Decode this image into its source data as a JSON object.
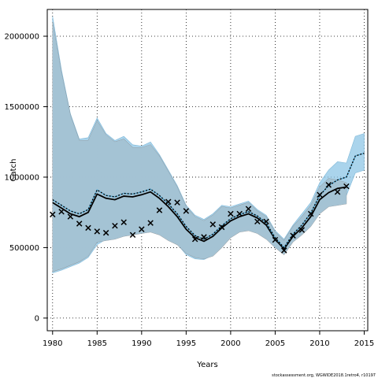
{
  "chart_data": {
    "type": "line",
    "title": "",
    "xlabel": "Years",
    "ylabel": "Catch",
    "xlim": [
      1979.4,
      2015.4
    ],
    "ylim": [
      -90000,
      2190000
    ],
    "xticks": [
      1980,
      1985,
      1990,
      1995,
      2000,
      2005,
      2010,
      2015
    ],
    "yticks": [
      0,
      500000,
      1000000,
      1500000,
      2000000
    ],
    "grid": true,
    "footer": "stockassessment.org, WGWIDE2018.1retro4, r10197",
    "colors": {
      "outer_band": "#8ec6e6",
      "gray_band": "#a3a3a3",
      "inner_band": "#a4c4d6",
      "estimate_line": "#000000",
      "retro_line": "#5ab0dc",
      "observed_marker": "#000000"
    },
    "series": [
      {
        "role": "upper-band-light",
        "x": [
          1980,
          1981,
          1982,
          1983,
          1984,
          1985,
          1986,
          1987,
          1988,
          1989,
          1990,
          1991,
          1992,
          1993,
          1994,
          1995,
          1996,
          1997,
          1998,
          1999,
          2000,
          2001,
          2002,
          2003,
          2004,
          2005,
          2006,
          2007,
          2008,
          2009,
          2010,
          2011,
          2012,
          2013,
          2014,
          2015
        ],
        "lower": [
          320000,
          340000,
          365000,
          390000,
          430000,
          520000,
          560000,
          580000,
          590000,
          600000,
          615000,
          620000,
          600000,
          560000,
          525000,
          450000,
          420000,
          415000,
          445000,
          520000,
          600000,
          640000,
          660000,
          640000,
          600000,
          500000,
          460000,
          560000,
          610000,
          700000,
          790000,
          835000,
          850000,
          870000,
          1030000,
          1050000
        ],
        "upper": [
          2140000,
          1760000,
          1450000,
          1270000,
          1280000,
          1420000,
          1310000,
          1260000,
          1290000,
          1230000,
          1220000,
          1250000,
          1160000,
          1050000,
          940000,
          800000,
          730000,
          700000,
          740000,
          800000,
          790000,
          810000,
          830000,
          770000,
          730000,
          620000,
          560000,
          660000,
          740000,
          820000,
          960000,
          1050000,
          1110000,
          1100000,
          1290000,
          1310000
        ]
      },
      {
        "role": "gray-band-final-run",
        "x": [
          1980,
          1981,
          1982,
          1983,
          1984,
          1985,
          1986,
          1987,
          1988,
          1989,
          1990,
          1991,
          1992,
          1993,
          1994,
          1995,
          1996,
          1997,
          1998,
          1999,
          2000,
          2001,
          2002,
          2003,
          2004,
          2005,
          2006,
          2007,
          2008,
          2009,
          2010,
          2011,
          2012,
          2013
        ],
        "lower": [
          330000,
          350000,
          375000,
          400000,
          440000,
          540000,
          550000,
          560000,
          580000,
          590000,
          600000,
          610000,
          590000,
          550000,
          520000,
          460000,
          430000,
          420000,
          440000,
          500000,
          570000,
          610000,
          620000,
          600000,
          560000,
          500000,
          450000,
          540000,
          590000,
          650000,
          740000,
          790000,
          800000,
          810000
        ],
        "upper": [
          2100000,
          1740000,
          1440000,
          1260000,
          1260000,
          1400000,
          1300000,
          1250000,
          1270000,
          1210000,
          1210000,
          1230000,
          1150000,
          1040000,
          930000,
          790000,
          720000,
          690000,
          730000,
          790000,
          780000,
          800000,
          820000,
          760000,
          720000,
          610000,
          550000,
          650000,
          720000,
          800000,
          930000,
          990000,
          980000,
          960000
        ]
      },
      {
        "role": "estimate-final-run",
        "x": [
          1980,
          1981,
          1982,
          1983,
          1984,
          1985,
          1986,
          1987,
          1988,
          1989,
          1990,
          1991,
          1992,
          1993,
          1994,
          1995,
          1996,
          1997,
          1998,
          1999,
          2000,
          2001,
          2002,
          2003,
          2004,
          2005,
          2006,
          2007,
          2008,
          2009,
          2010,
          2011,
          2012,
          2013
        ],
        "values": [
          820000,
          780000,
          740000,
          720000,
          750000,
          880000,
          850000,
          840000,
          865000,
          860000,
          875000,
          895000,
          850000,
          790000,
          720000,
          630000,
          570000,
          545000,
          580000,
          640000,
          690000,
          720000,
          740000,
          710000,
          660000,
          560000,
          490000,
          580000,
          640000,
          720000,
          840000,
          890000,
          920000,
          930000
        ]
      },
      {
        "role": "estimate-retro-peel",
        "x": [
          1980,
          1981,
          1982,
          1983,
          1984,
          1985,
          1986,
          1987,
          1988,
          1989,
          1990,
          1991,
          1992,
          1993,
          1994,
          1995,
          1996,
          1997,
          1998,
          1999,
          2000,
          2001,
          2002,
          2003,
          2004,
          2005,
          2006,
          2007,
          2008,
          2009,
          2010,
          2011,
          2012,
          2013,
          2014,
          2015
        ],
        "values": [
          840000,
          800000,
          760000,
          740000,
          770000,
          910000,
          870000,
          860000,
          885000,
          880000,
          895000,
          915000,
          870000,
          810000,
          740000,
          650000,
          585000,
          560000,
          595000,
          655000,
          705000,
          735000,
          755000,
          725000,
          675000,
          570000,
          500000,
          595000,
          660000,
          745000,
          870000,
          940000,
          980000,
          1000000,
          1150000,
          1170000
        ]
      },
      {
        "role": "observed-catch",
        "x": [
          1980,
          1981,
          1982,
          1983,
          1984,
          1985,
          1986,
          1987,
          1988,
          1989,
          1990,
          1991,
          1992,
          1993,
          1994,
          1995,
          1996,
          1997,
          1998,
          1999,
          2000,
          2001,
          2002,
          2003,
          2004,
          2005,
          2006,
          2007,
          2008,
          2009,
          2010,
          2011,
          2012,
          2013
        ],
        "values": [
          735000,
          755000,
          720000,
          670000,
          640000,
          615000,
          605000,
          655000,
          680000,
          590000,
          630000,
          675000,
          765000,
          825000,
          820000,
          760000,
          560000,
          575000,
          665000,
          645000,
          740000,
          740000,
          775000,
          685000,
          685000,
          555000,
          480000,
          585000,
          625000,
          740000,
          875000,
          945000,
          895000,
          935000
        ]
      }
    ]
  }
}
